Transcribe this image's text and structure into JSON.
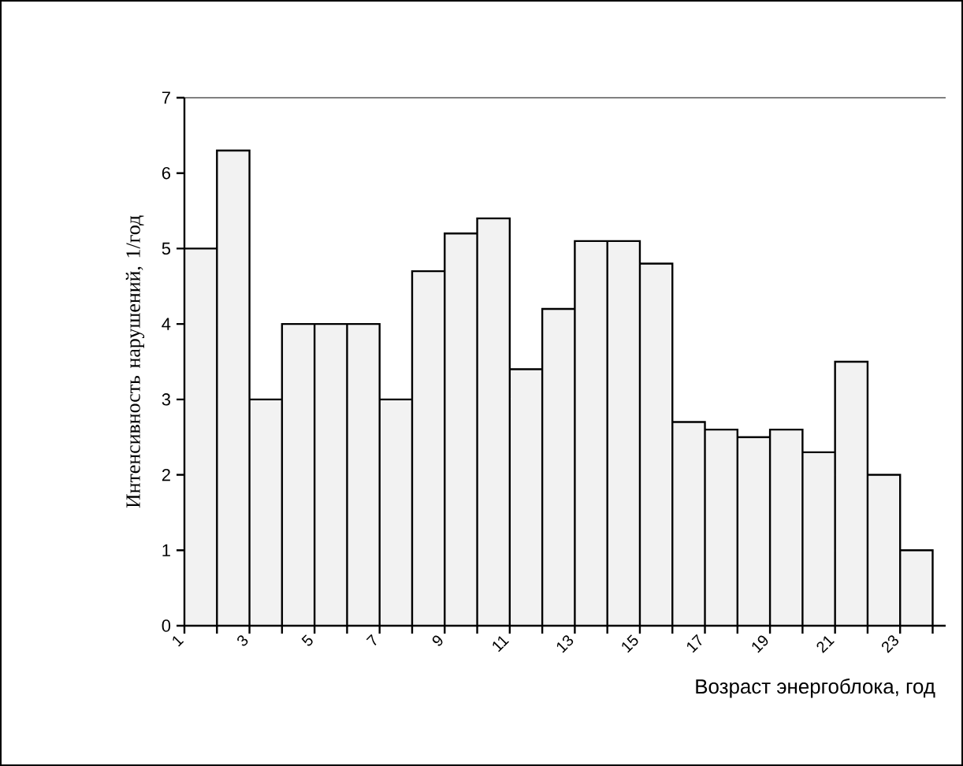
{
  "chart_data": {
    "type": "histogram",
    "xlabel": "Возраст энергоблока, год",
    "ylabel": "Интенсивность нарушений, 1/год",
    "bins": [
      1,
      2,
      3,
      4,
      5,
      6,
      7,
      8,
      9,
      10,
      11,
      12,
      13,
      14,
      15,
      16,
      17,
      18,
      19,
      20,
      21,
      22,
      23,
      24
    ],
    "values": [
      5,
      6.3,
      3,
      4,
      4,
      4,
      3,
      4.7,
      5.2,
      5.4,
      3.4,
      4.2,
      5.1,
      5.1,
      4.8,
      2.7,
      2.6,
      2.5,
      2.6,
      2.3,
      3.5,
      2.0,
      1.0
    ],
    "color": "#f2f2f2",
    "xlim": [
      1,
      24.4
    ],
    "xticks": [
      1,
      {
        "value": 2,
        "label": null
      },
      3,
      {
        "value": 4,
        "label": null
      },
      5,
      {
        "value": 6,
        "label": null
      },
      7,
      {
        "value": 8,
        "label": null
      },
      9,
      {
        "value": 10,
        "label": null
      },
      11,
      {
        "value": 12,
        "label": null
      },
      13,
      {
        "value": 14,
        "label": null
      },
      15,
      {
        "value": 16,
        "label": null
      },
      17,
      {
        "value": 18,
        "label": null
      },
      19,
      {
        "value": 20,
        "label": null
      },
      21,
      {
        "value": 22,
        "label": null
      },
      23,
      {
        "value": 24,
        "label": null
      }
    ],
    "ylim": [
      0,
      7
    ],
    "yticks": [
      0,
      1,
      2,
      3,
      4,
      5,
      6,
      7
    ],
    "grid": false
  }
}
